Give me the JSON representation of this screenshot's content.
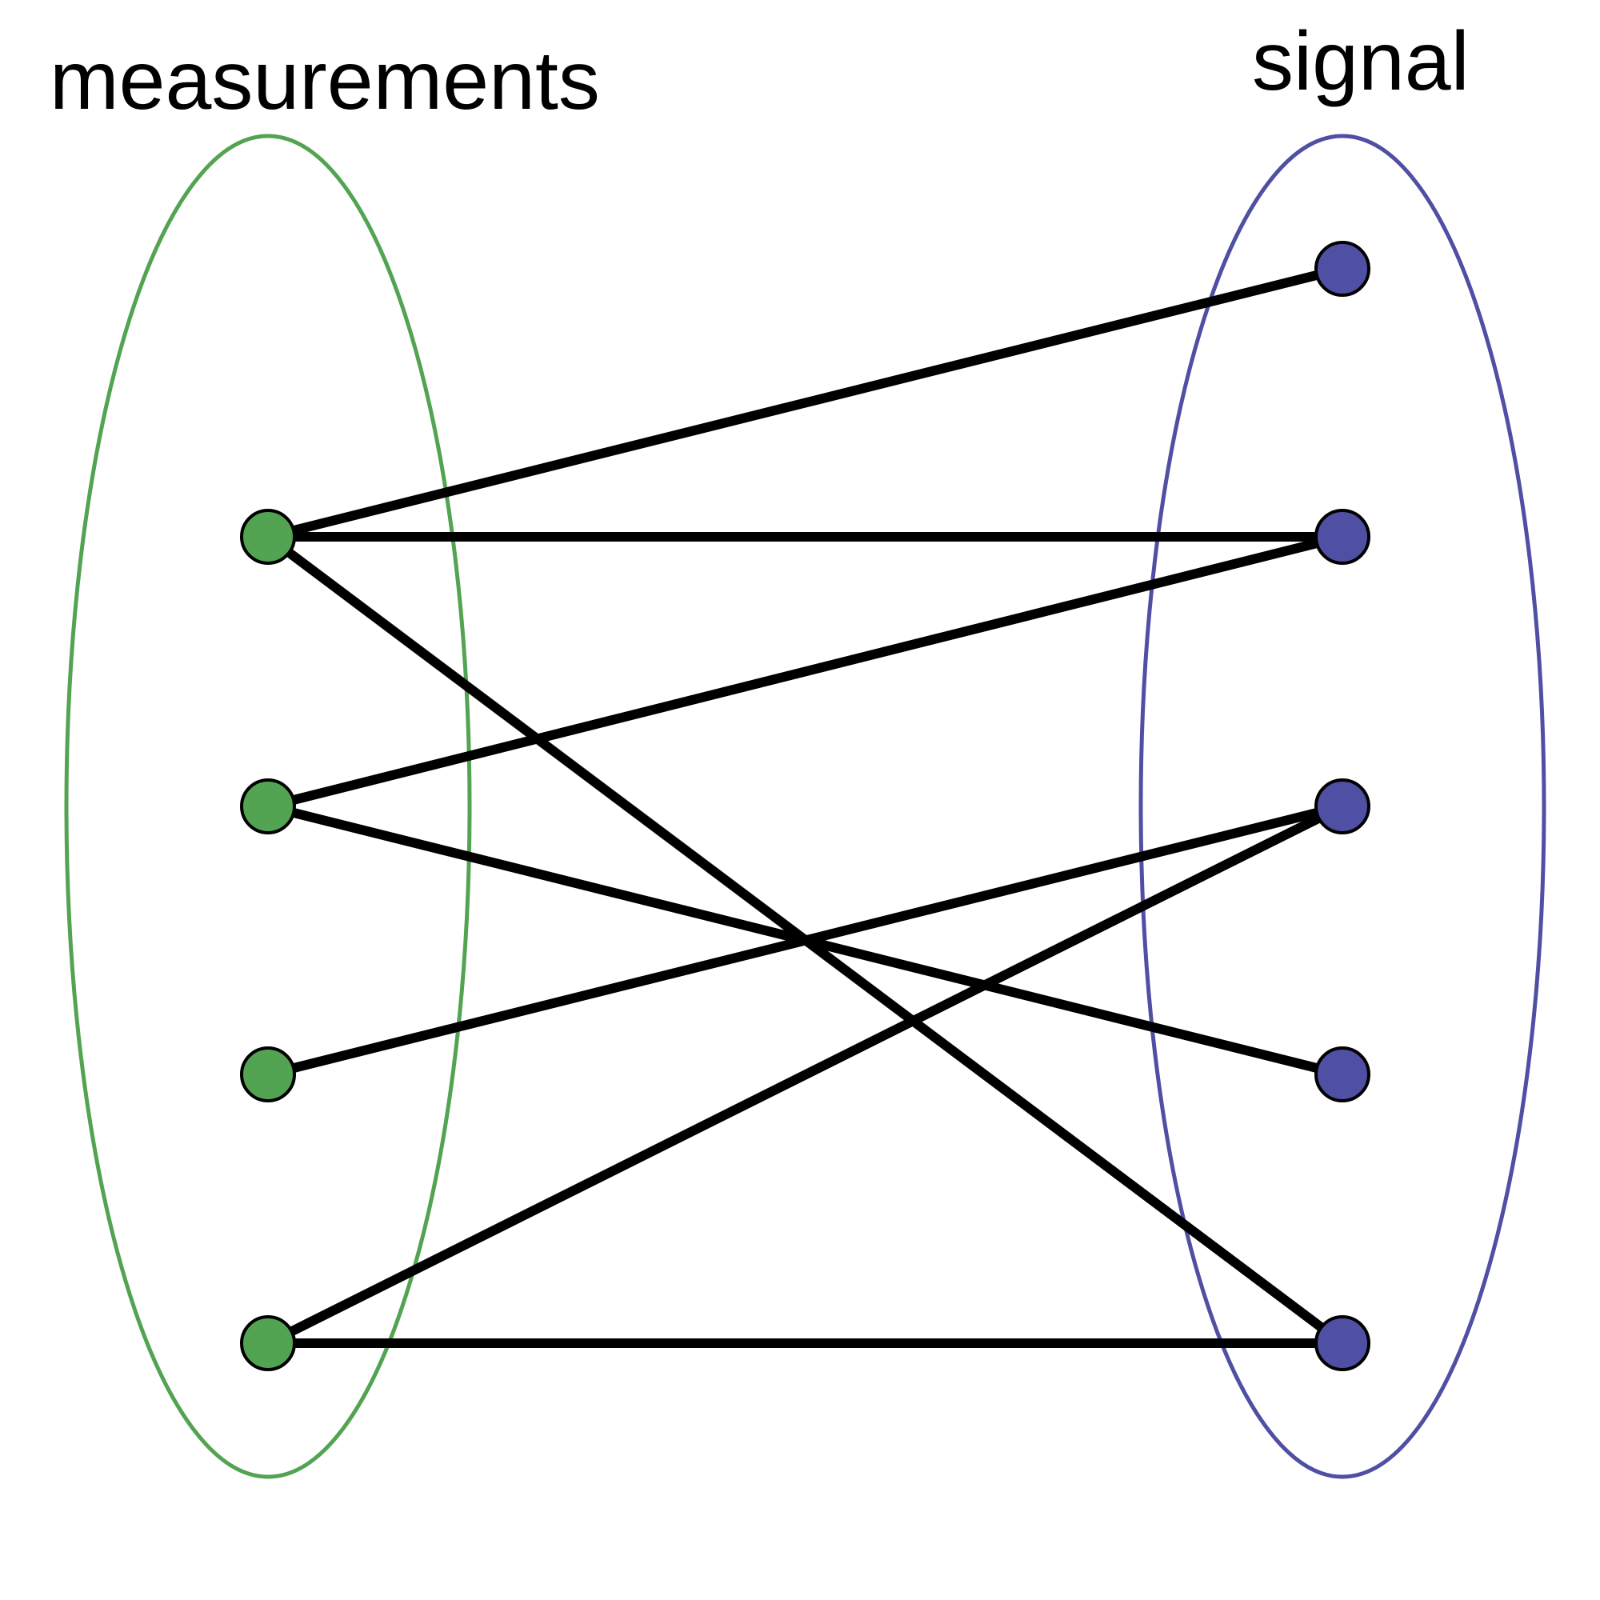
{
  "labels": {
    "left": "measurements",
    "right": "signal"
  },
  "colors": {
    "left_group": "#52a352",
    "right_group": "#4f4fa3",
    "edge": "#000000",
    "node_outline": "#000000",
    "background": "#ffffff"
  },
  "graph": {
    "type": "bipartite",
    "left_nodes": [
      "m1",
      "m2",
      "m3",
      "m4"
    ],
    "right_nodes": [
      "s1",
      "s2",
      "s3",
      "s4",
      "s5"
    ],
    "edges": [
      [
        "m1",
        "s1"
      ],
      [
        "m1",
        "s2"
      ],
      [
        "m1",
        "s5"
      ],
      [
        "m2",
        "s2"
      ],
      [
        "m2",
        "s4"
      ],
      [
        "m3",
        "s3"
      ],
      [
        "m4",
        "s3"
      ],
      [
        "m4",
        "s5"
      ]
    ]
  }
}
